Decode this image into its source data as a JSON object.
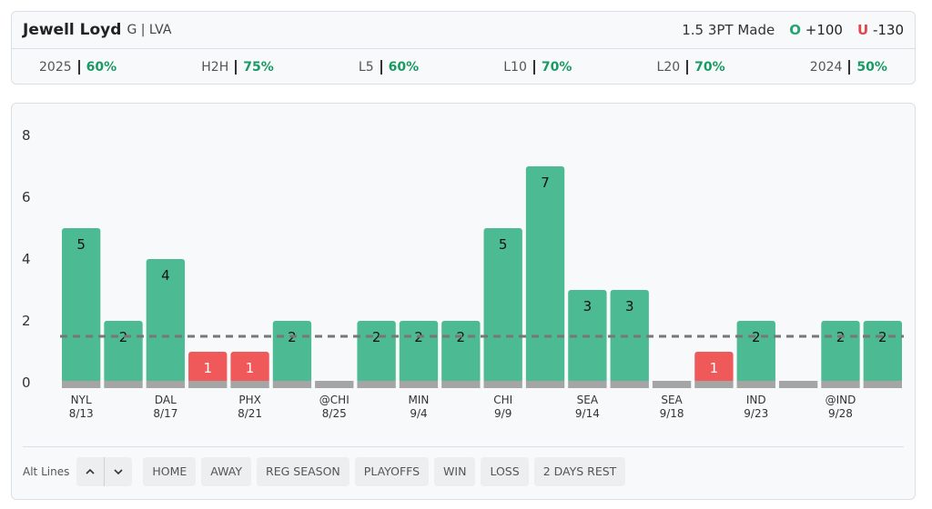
{
  "header": {
    "name": "Jewell Loyd",
    "position": "G | LVA",
    "stat": "3PT Made",
    "over_label": "O",
    "over_odds": "+100",
    "under_label": "U",
    "under_odds": "-130"
  },
  "stats": [
    {
      "label": "2025",
      "value": "60%"
    },
    {
      "label": "H2H",
      "value": "75%"
    },
    {
      "label": "L5",
      "value": "60%"
    },
    {
      "label": "L10",
      "value": "70%"
    },
    {
      "label": "L20",
      "value": "70%"
    },
    {
      "label": "2024",
      "value": "50%"
    }
  ],
  "chart_data": {
    "type": "bar",
    "line": 1.5,
    "categories": [
      "NYL",
      null,
      "DAL",
      null,
      "PHX",
      null,
      "@CHI",
      null,
      "MIN",
      null,
      "CHI",
      null,
      "SEA",
      null,
      "SEA",
      null,
      "IND",
      null,
      "@IND",
      null
    ],
    "dates": [
      "8/13",
      null,
      "8/17",
      null,
      "8/21",
      null,
      "8/25",
      null,
      "9/4",
      null,
      "9/9",
      null,
      "9/14",
      null,
      "9/18",
      null,
      "9/23",
      null,
      "9/28",
      null
    ],
    "values": [
      5,
      2,
      4,
      1,
      1,
      2,
      0,
      2,
      2,
      2,
      5,
      7,
      3,
      3,
      0,
      1,
      2,
      0,
      2,
      2
    ],
    "over_color": "#4cbb93",
    "under_color": "#f0595a",
    "ylim": [
      0,
      8
    ],
    "yticks": [
      0,
      2,
      4,
      6,
      8
    ]
  },
  "filters": {
    "label": "Alt Lines",
    "buttons": [
      "HOME",
      "AWAY",
      "REG SEASON",
      "PLAYOFFS",
      "WIN",
      "LOSS",
      "2 DAYS REST"
    ]
  }
}
